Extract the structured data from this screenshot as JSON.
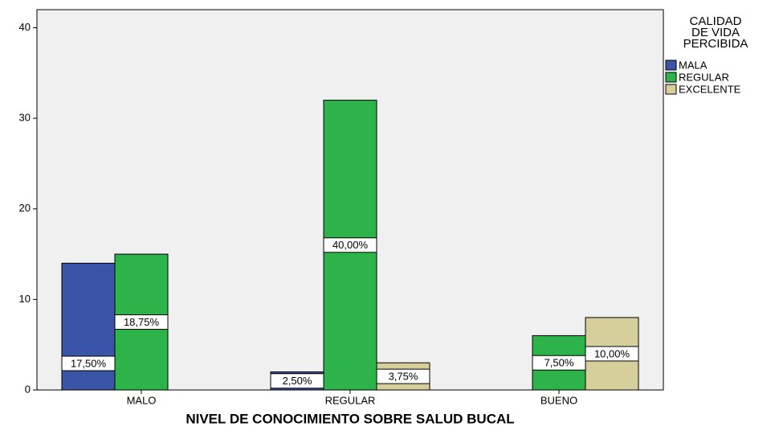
{
  "chart_data": {
    "type": "bar",
    "x_label": "NIVEL DE CONOCIMIENTO SOBRE SALUD BUCAL",
    "legend_title": [
      "CALIDAD",
      "DE VIDA",
      "PERCIBIDA"
    ],
    "categories": [
      "MALO",
      "REGULAR",
      "BUENO"
    ],
    "series": [
      {
        "name": "MALA",
        "color": "#3a55a8",
        "values": [
          14,
          2,
          null
        ],
        "percent_labels": [
          "17,50%",
          "2,50%",
          null
        ]
      },
      {
        "name": "REGULAR",
        "color": "#2db34a",
        "values": [
          15,
          32,
          6
        ],
        "percent_labels": [
          "18,75%",
          "40,00%",
          "7,50%"
        ]
      },
      {
        "name": "EXCELENTE",
        "color": "#d6cf9c",
        "values": [
          null,
          3,
          8
        ],
        "percent_labels": [
          null,
          "3,75%",
          "10,00%"
        ]
      }
    ],
    "ylim": [
      0,
      42
    ],
    "yticks": [
      0,
      10,
      20,
      30,
      40
    ],
    "legend": "right"
  }
}
